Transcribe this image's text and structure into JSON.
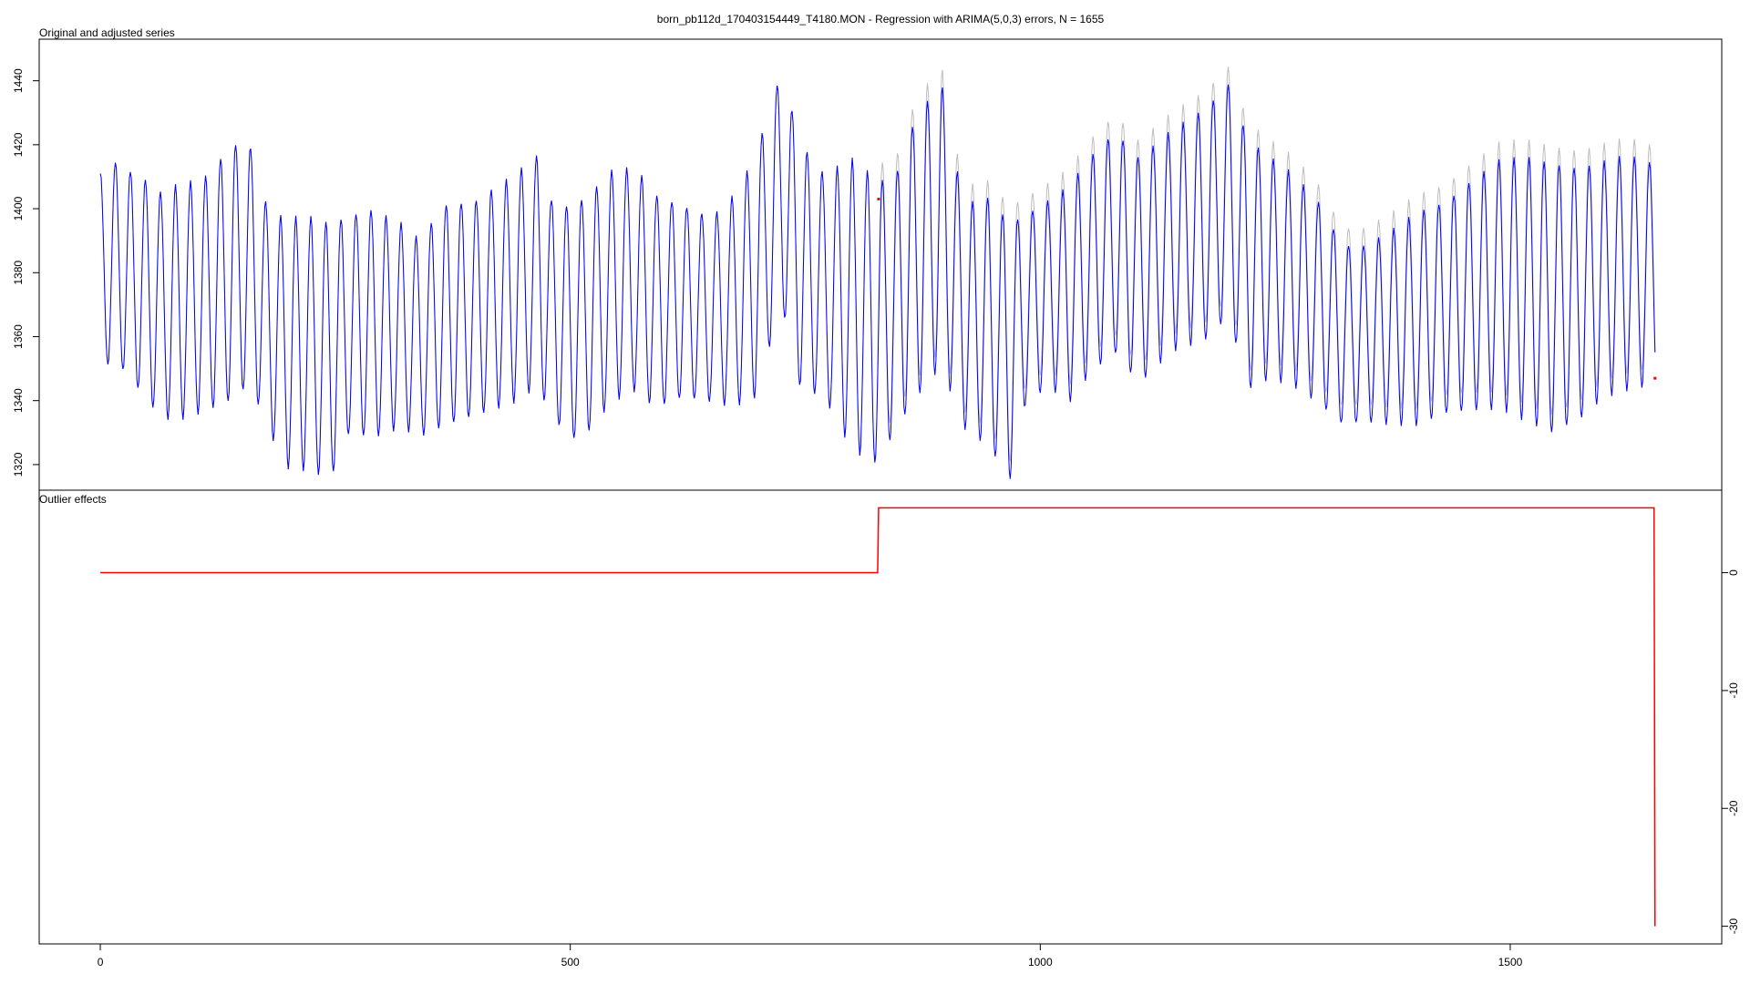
{
  "chart_data": [
    {
      "type": "line",
      "title": "born_pb112d_170403154449_T4180.MON - Regression with ARIMA(5,0,3) errors, N = 1655",
      "panel_label": "Original and adjusted series",
      "xlim": [
        -65,
        1725
      ],
      "ylim": [
        1312,
        1453
      ],
      "y_ticks": [
        1320,
        1340,
        1360,
        1380,
        1400,
        1420,
        1440
      ],
      "y_axis_side": "left",
      "series": [
        {
          "role": "original",
          "color": "#bdbdbd",
          "n": 1655,
          "period": 16,
          "shift_at": 828,
          "shift": 5.5,
          "drop_at": 1654,
          "drop": -30,
          "amplitude_envelope": [
            [
              0,
              1411,
              1350
            ],
            [
              16,
              1415,
              1352
            ],
            [
              48,
              1410,
              1340
            ],
            [
              64,
              1406,
              1334
            ],
            [
              80,
              1408,
              1333
            ],
            [
              110,
              1410,
              1336
            ],
            [
              140,
              1420,
              1340
            ],
            [
              158,
              1421,
              1345
            ],
            [
              175,
              1402,
              1335
            ],
            [
              195,
              1396,
              1320
            ],
            [
              220,
              1397,
              1319
            ],
            [
              245,
              1395,
              1316
            ],
            [
              265,
              1398,
              1330
            ],
            [
              290,
              1400,
              1328
            ],
            [
              320,
              1396,
              1331
            ],
            [
              340,
              1391,
              1328
            ],
            [
              365,
              1402,
              1331
            ],
            [
              400,
              1403,
              1335
            ],
            [
              440,
              1410,
              1340
            ],
            [
              465,
              1416,
              1345
            ],
            [
              480,
              1402,
              1336
            ],
            [
              500,
              1400,
              1328
            ],
            [
              520,
              1404,
              1331
            ],
            [
              545,
              1412,
              1340
            ],
            [
              570,
              1413,
              1343
            ],
            [
              590,
              1405,
              1337
            ],
            [
              620,
              1402,
              1340
            ],
            [
              650,
              1398,
              1339
            ],
            [
              670,
              1403,
              1338
            ],
            [
              695,
              1415,
              1340
            ],
            [
              725,
              1443,
              1370
            ],
            [
              745,
              1420,
              1344
            ],
            [
              770,
              1410,
              1342
            ],
            [
              800,
              1415,
              1325
            ],
            [
              828,
              1409,
              1320
            ],
            [
              845,
              1410,
              1330
            ],
            [
              868,
              1430,
              1340
            ],
            [
              895,
              1440,
              1350
            ],
            [
              918,
              1402,
              1331
            ],
            [
              945,
              1404,
              1325
            ],
            [
              968,
              1396,
              1315
            ],
            [
              985,
              1398,
              1340
            ],
            [
              1010,
              1402,
              1345
            ],
            [
              1030,
              1406,
              1340
            ],
            [
              1055,
              1416,
              1350
            ],
            [
              1080,
              1424,
              1355
            ],
            [
              1105,
              1416,
              1345
            ],
            [
              1140,
              1425,
              1355
            ],
            [
              1175,
              1432,
              1358
            ],
            [
              1200,
              1440,
              1365
            ],
            [
              1222,
              1422,
              1343
            ],
            [
              1245,
              1416,
              1347
            ],
            [
              1270,
              1410,
              1345
            ],
            [
              1295,
              1402,
              1340
            ],
            [
              1322,
              1388,
              1333
            ],
            [
              1345,
              1388,
              1334
            ],
            [
              1370,
              1392,
              1333
            ],
            [
              1400,
              1399,
              1332
            ],
            [
              1430,
              1403,
              1335
            ],
            [
              1460,
              1410,
              1336
            ],
            [
              1490,
              1416,
              1337
            ],
            [
              1520,
              1416,
              1333
            ],
            [
              1545,
              1414,
              1330
            ],
            [
              1575,
              1412,
              1335
            ],
            [
              1600,
              1414,
              1342
            ],
            [
              1625,
              1416,
              1344
            ],
            [
              1654,
              1414,
              1345
            ]
          ]
        },
        {
          "role": "adjusted",
          "color": "#0000ff",
          "n": 1655
        }
      ],
      "outlier_points": [
        {
          "x": 828,
          "y": 1403,
          "color": "#ff0000"
        },
        {
          "x": 1654,
          "y": 1347,
          "color": "#ff0000"
        }
      ]
    },
    {
      "type": "line",
      "panel_label": "Outlier effects",
      "xlim": [
        -65,
        1725
      ],
      "ylim": [
        -31.5,
        7
      ],
      "x_ticks": [
        0,
        500,
        1000,
        1500
      ],
      "y_ticks": [
        0,
        -10,
        -20,
        -30
      ],
      "y_axis_side": "right",
      "series": [
        {
          "role": "outlier-effects",
          "color": "#ff0000",
          "x": [
            0,
            827,
            828,
            1653,
            1654
          ],
          "y": [
            0,
            0,
            5.5,
            5.5,
            -30
          ]
        }
      ]
    }
  ]
}
